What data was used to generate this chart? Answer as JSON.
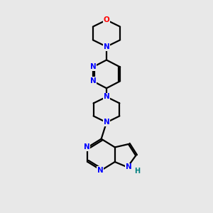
{
  "bg_color": "#e8e8e8",
  "bond_color": "#000000",
  "N_color": "#0000ff",
  "O_color": "#ff0000",
  "H_color": "#008080",
  "line_width": 1.6,
  "font_size_atom": 7.5,
  "fig_width": 3.0,
  "fig_height": 3.0,
  "dpi": 100,
  "xlim": [
    0,
    10
  ],
  "ylim": [
    0,
    10
  ]
}
